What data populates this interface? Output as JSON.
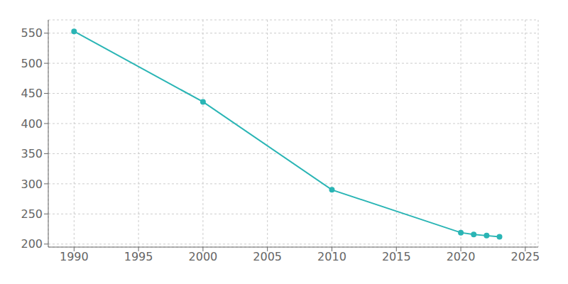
{
  "chart_data": {
    "type": "line",
    "x": [
      1990,
      2000,
      2010,
      2020,
      2021,
      2022,
      2023
    ],
    "values": [
      553,
      436,
      290,
      219,
      216,
      214,
      212
    ],
    "color": "#2ab5b5",
    "marker": "circle",
    "xlim": [
      1988,
      2026
    ],
    "ylim": [
      195,
      572
    ],
    "xticks": [
      1990,
      1995,
      2000,
      2005,
      2010,
      2015,
      2020,
      2025
    ],
    "yticks": [
      200,
      250,
      300,
      350,
      400,
      450,
      500,
      550
    ],
    "grid": true
  }
}
